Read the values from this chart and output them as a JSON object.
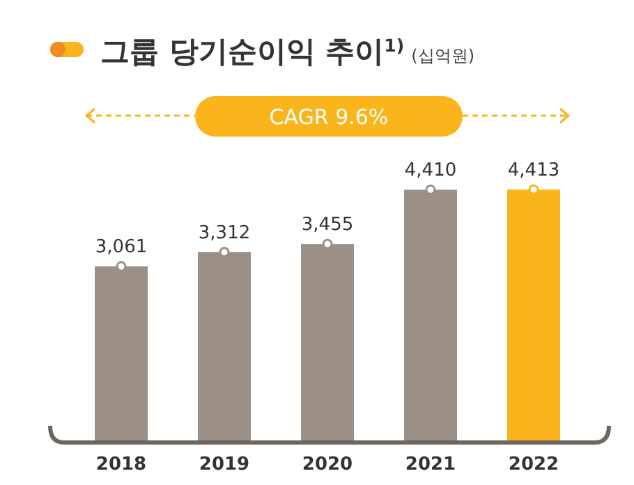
{
  "chart_data": {
    "type": "bar",
    "title": "그룹 당기순이익 추이$^{1)}$",
    "subtitle": "(십억원)",
    "annotations": [
      "CAGR 9.6%"
    ],
    "categories": [
      "2018",
      "2019",
      "2020",
      "2021",
      "2022"
    ],
    "values": [
      3061,
      3312,
      3455,
      4410,
      4413
    ],
    "value_labels": [
      "3,061",
      "3,312",
      "3,455",
      "4,410",
      "4,413"
    ],
    "colors": [
      "#9b9087",
      "#9b9087",
      "#9b9087",
      "#9b9087",
      "#f9b51b"
    ]
  }
}
